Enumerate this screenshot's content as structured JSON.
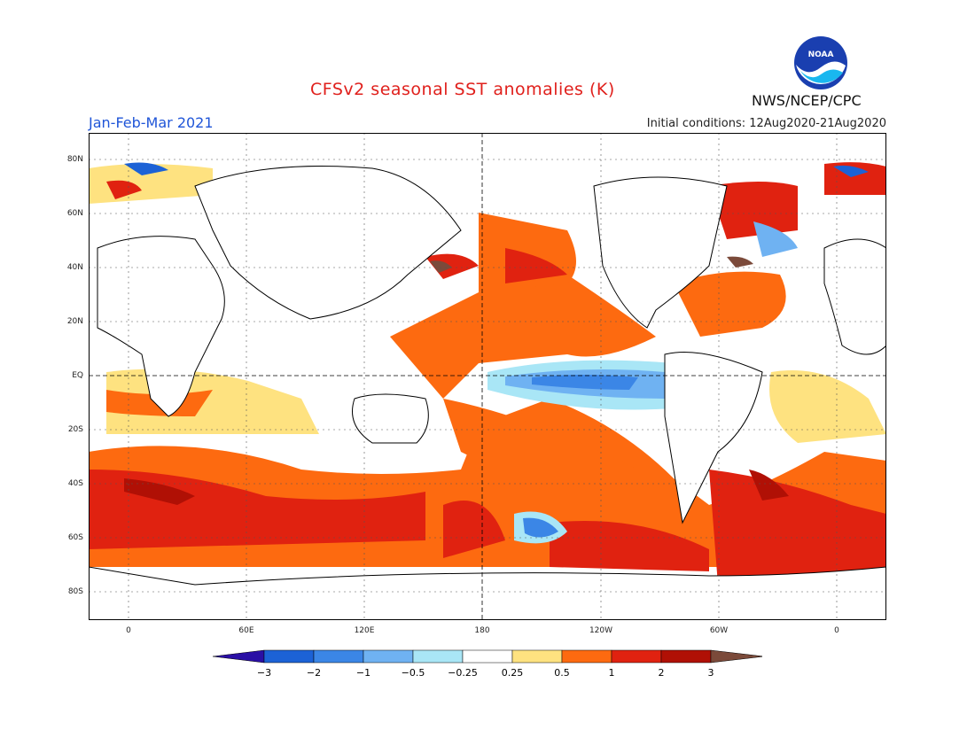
{
  "title": "CFSv2 seasonal SST anomalies (K)",
  "period": "Jan-Feb-Mar 2021",
  "initial_conditions": "Initial conditions: 12Aug2020-21Aug2020",
  "agency": "NWS/NCEP/CPC",
  "logo_text": "NOAA",
  "axes": {
    "lat_labels": [
      "80N",
      "60N",
      "40N",
      "20N",
      "EQ",
      "20S",
      "40S",
      "60S",
      "80S"
    ],
    "lon_labels": [
      "0",
      "60E",
      "120E",
      "180",
      "120W",
      "60W",
      "0"
    ]
  },
  "legend": {
    "tick_labels": [
      "-3",
      "-2",
      "-1",
      "-0.5",
      "-0.25",
      "0.25",
      "0.5",
      "1",
      "2",
      "3"
    ],
    "colors": [
      "#2a0fa5",
      "#1c62d6",
      "#3b86e6",
      "#6fb2f2",
      "#a9e6f6",
      "#ffffff",
      "#fee280",
      "#fd6a10",
      "#e02210",
      "#b01005",
      "#7b4a3a"
    ]
  }
}
